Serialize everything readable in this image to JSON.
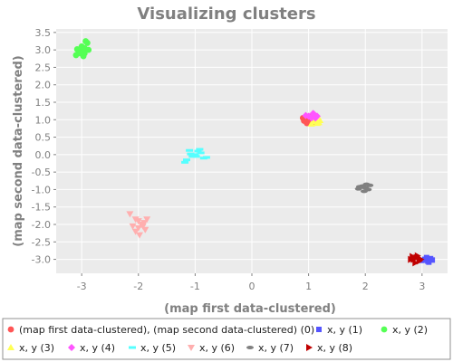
{
  "chart_data": {
    "type": "scatter",
    "title": "Visualizing clusters",
    "xlabel": "(map first data-clustered)",
    "ylabel": "(map second data-clustered)",
    "xlim": [
      -3.45,
      3.45
    ],
    "ylim": [
      -3.4,
      3.6
    ],
    "x_ticks": [
      -3,
      -2,
      -1,
      0,
      1,
      2,
      3
    ],
    "y_ticks": [
      3.5,
      3.0,
      2.5,
      2.0,
      1.5,
      1.0,
      0.5,
      0.0,
      -0.5,
      -1.0,
      -1.5,
      -2.0,
      -2.5,
      -3.0
    ],
    "grid": true,
    "plot_background": "#ebebeb",
    "legend_position": "bottom",
    "series": [
      {
        "name": "(map first data-clustered), (map second data-clustered) (0)",
        "color": "#ff5555",
        "marker": "circle",
        "points": [
          [
            0.95,
            1.0
          ],
          [
            1.0,
            0.95
          ],
          [
            0.9,
            1.05
          ],
          [
            1.05,
            1.0
          ],
          [
            0.97,
            0.9
          ],
          [
            1.02,
            1.08
          ],
          [
            0.92,
            0.97
          ],
          [
            1.08,
            0.93
          ],
          [
            0.98,
            1.02
          ]
        ]
      },
      {
        "name": "x, y (1)",
        "color": "#5555ff",
        "marker": "square",
        "points": [
          [
            3.05,
            -3.0
          ],
          [
            3.1,
            -3.05
          ],
          [
            3.15,
            -2.98
          ],
          [
            3.0,
            -3.03
          ],
          [
            3.12,
            -3.08
          ],
          [
            3.08,
            -2.95
          ],
          [
            3.18,
            -3.02
          ]
        ]
      },
      {
        "name": "x, y (2)",
        "color": "#55ff55",
        "marker": "circle",
        "points": [
          [
            -3.0,
            3.0
          ],
          [
            -2.95,
            3.05
          ],
          [
            -3.05,
            2.95
          ],
          [
            -2.9,
            3.2
          ],
          [
            -3.1,
            2.85
          ],
          [
            -2.95,
            2.9
          ],
          [
            -3.0,
            3.1
          ],
          [
            -2.88,
            3.0
          ],
          [
            -3.08,
            3.02
          ],
          [
            -2.97,
            2.82
          ],
          [
            -2.93,
            3.25
          ],
          [
            -3.02,
            2.9
          ]
        ]
      },
      {
        "name": "x, y (3)",
        "color": "#ffff55",
        "marker": "triangle-up",
        "points": [
          [
            1.1,
            0.95
          ],
          [
            1.15,
            0.9
          ],
          [
            1.2,
            0.98
          ],
          [
            1.05,
            0.88
          ],
          [
            1.12,
            1.02
          ],
          [
            1.18,
            0.92
          ]
        ]
      },
      {
        "name": "x, y (4)",
        "color": "#ff55ff",
        "marker": "diamond",
        "points": [
          [
            1.0,
            1.1
          ],
          [
            1.1,
            1.15
          ],
          [
            1.05,
            1.05
          ],
          [
            1.15,
            1.1
          ],
          [
            0.95,
            1.12
          ],
          [
            1.08,
            1.18
          ],
          [
            1.12,
            1.05
          ]
        ]
      },
      {
        "name": "x, y (5)",
        "color": "#55ffff",
        "marker": "hbar",
        "points": [
          [
            -1.0,
            0.0
          ],
          [
            -0.95,
            0.1
          ],
          [
            -1.05,
            -0.05
          ],
          [
            -0.9,
            0.05
          ],
          [
            -1.1,
            0.12
          ],
          [
            -0.85,
            -0.1
          ],
          [
            -1.15,
            -0.15
          ],
          [
            -0.98,
            -0.05
          ],
          [
            -0.8,
            -0.08
          ],
          [
            -1.08,
            0.02
          ],
          [
            -0.92,
            0.15
          ],
          [
            -1.18,
            -0.22
          ]
        ]
      },
      {
        "name": "x, y (6)",
        "color": "#ffafaf",
        "marker": "triangle-down",
        "points": [
          [
            -2.0,
            -1.9
          ],
          [
            -1.95,
            -2.0
          ],
          [
            -2.05,
            -1.85
          ],
          [
            -1.9,
            -1.95
          ],
          [
            -2.1,
            -2.05
          ],
          [
            -1.85,
            -1.85
          ],
          [
            -2.0,
            -2.1
          ],
          [
            -2.05,
            -2.2
          ],
          [
            -1.98,
            -2.3
          ],
          [
            -2.15,
            -1.7
          ],
          [
            -1.92,
            -2.05
          ],
          [
            -1.88,
            -2.15
          ]
        ]
      },
      {
        "name": "x, y (7)",
        "color": "#808080",
        "marker": "ellipse",
        "points": [
          [
            2.0,
            -0.95
          ],
          [
            1.95,
            -0.9
          ],
          [
            2.05,
            -1.0
          ],
          [
            1.9,
            -0.92
          ],
          [
            2.08,
            -0.88
          ],
          [
            1.98,
            -1.05
          ],
          [
            2.02,
            -0.85
          ],
          [
            1.88,
            -0.98
          ]
        ]
      },
      {
        "name": "x, y (8)",
        "color": "#c00000",
        "marker": "triangle-right",
        "points": [
          [
            2.85,
            -3.0
          ],
          [
            2.9,
            -2.95
          ],
          [
            2.95,
            -3.05
          ],
          [
            2.88,
            -3.1
          ],
          [
            2.8,
            -3.0
          ],
          [
            2.92,
            -2.9
          ],
          [
            2.98,
            -3.0
          ],
          [
            2.83,
            -2.92
          ]
        ]
      }
    ]
  }
}
